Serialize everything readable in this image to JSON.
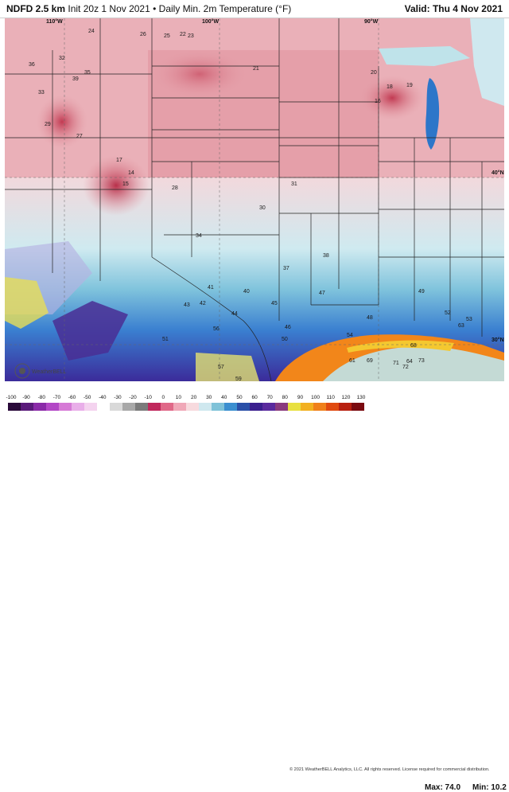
{
  "header": {
    "model": "NDFD 2.5 km",
    "init": "Init 20z 1 Nov 2021",
    "separator": "•",
    "field": "Daily Min. 2m Temperature (°F)",
    "valid": "Valid: Thu 4 Nov 2021"
  },
  "map": {
    "meridians": [
      "110°W",
      "100°W",
      "90°W"
    ],
    "parallels": [
      "40°N",
      "30°N"
    ],
    "logo_text": "WeatherBELL",
    "colors": {
      "water_bg": "#bfe3ea",
      "land_warm": "#e9a1aa",
      "land_cold": "#c9475b",
      "lake": "#2d76c9",
      "gulf_warm": "#f2861a",
      "state_line": "#222222"
    },
    "labels": [
      {
        "t": "24"
      },
      {
        "t": "26"
      },
      {
        "t": "25"
      },
      {
        "t": "22"
      },
      {
        "t": "23"
      },
      {
        "t": "21"
      },
      {
        "t": "20"
      },
      {
        "t": "18"
      },
      {
        "t": "19"
      },
      {
        "t": "16"
      },
      {
        "t": "33"
      },
      {
        "t": "36"
      },
      {
        "t": "32"
      },
      {
        "t": "39"
      },
      {
        "t": "35"
      },
      {
        "t": "29"
      },
      {
        "t": "27"
      },
      {
        "t": "28"
      },
      {
        "t": "30"
      },
      {
        "t": "31"
      },
      {
        "t": "42"
      },
      {
        "t": "41"
      },
      {
        "t": "40"
      },
      {
        "t": "37"
      },
      {
        "t": "38"
      },
      {
        "t": "34"
      },
      {
        "t": "43"
      },
      {
        "t": "44"
      },
      {
        "t": "45"
      },
      {
        "t": "46"
      },
      {
        "t": "47"
      },
      {
        "t": "48"
      },
      {
        "t": "49"
      },
      {
        "t": "50"
      },
      {
        "t": "51"
      },
      {
        "t": "52"
      },
      {
        "t": "53"
      },
      {
        "t": "54"
      },
      {
        "t": "56"
      },
      {
        "t": "57"
      },
      {
        "t": "59"
      },
      {
        "t": "61"
      },
      {
        "t": "63"
      },
      {
        "t": "64"
      },
      {
        "t": "68"
      },
      {
        "t": "69"
      },
      {
        "t": "71"
      },
      {
        "t": "72"
      },
      {
        "t": "73"
      },
      {
        "t": "14"
      },
      {
        "t": "17"
      },
      {
        "t": "15"
      }
    ]
  },
  "footer": {
    "credit": "© 2021 WeatherBELL Analytics, LLC. All rights reserved. License required for commercial distribution.",
    "max_label": "Max: 74.0",
    "min_label": "Min: 10.2",
    "colorbar_ticks": [
      "-100",
      "-90",
      "-80",
      "-70",
      "-60",
      "-50",
      "-40",
      "-30",
      "-20",
      "-10",
      "0",
      "10",
      "20",
      "30",
      "40",
      "50",
      "60",
      "70",
      "80",
      "90",
      "100",
      "110",
      "120",
      "130"
    ],
    "colorbar_colors": [
      "#2a0a3a",
      "#5a1a7a",
      "#8a2aa8",
      "#b347c6",
      "#d67ad6",
      "#e9aee9",
      "#f4d3ef",
      "#ffffff",
      "#d9d9d9",
      "#a8a8a8",
      "#7b7b7b",
      "#c0285c",
      "#e06888",
      "#f0a8b8",
      "#f7dade",
      "#cfe8ef",
      "#7fc2d8",
      "#3b8fd0",
      "#2a4fa8",
      "#3a1f8e",
      "#5a2a9e",
      "#8a3a7e",
      "#e8e040",
      "#f2b020",
      "#f0801a",
      "#e04a10",
      "#b82010",
      "#7a0a10"
    ]
  }
}
